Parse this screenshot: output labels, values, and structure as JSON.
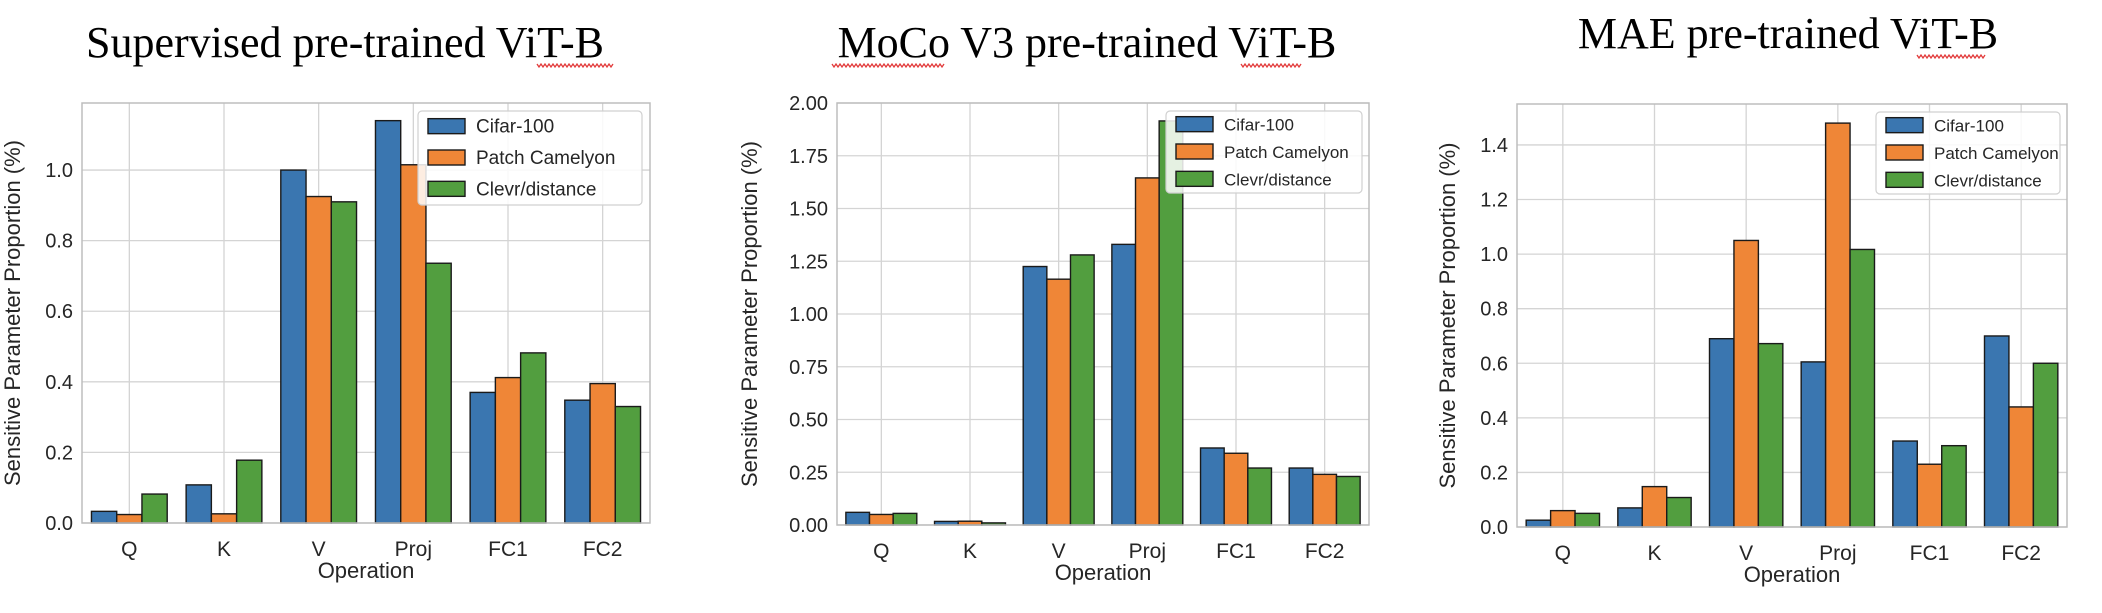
{
  "colors": {
    "Cifar-100": "#3a76b0",
    "Patch Camelyon": "#ef8637",
    "Clevr/distance": "#529e3f"
  },
  "chart_data": [
    {
      "type": "bar",
      "title": "Supervised pre-trained ViT-B",
      "xlabel": "Operation",
      "ylabel": "Sensitive Parameter Proportion (%)",
      "categories": [
        "Q",
        "K",
        "V",
        "Proj",
        "FC1",
        "FC2"
      ],
      "ylim": [
        0,
        1.19
      ],
      "yticks": [
        "0.0",
        "0.2",
        "0.4",
        "0.6",
        "0.8",
        "1.0"
      ],
      "legend_position": "top-right",
      "series": [
        {
          "name": "Cifar-100",
          "values": [
            0.033,
            0.108,
            1.0,
            1.14,
            0.37,
            0.348
          ]
        },
        {
          "name": "Patch Camelyon",
          "values": [
            0.024,
            0.026,
            0.925,
            1.015,
            0.412,
            0.395
          ]
        },
        {
          "name": "Clevr/distance",
          "values": [
            0.082,
            0.178,
            0.91,
            0.736,
            0.482,
            0.33
          ]
        }
      ]
    },
    {
      "type": "bar",
      "title": "MoCo V3 pre-trained ViT-B",
      "xlabel": "Operation",
      "ylabel": "Sensitive Parameter Proportion (%)",
      "categories": [
        "Q",
        "K",
        "V",
        "Proj",
        "FC1",
        "FC2"
      ],
      "ylim": [
        0,
        2.0
      ],
      "yticks": [
        "0.00",
        "0.25",
        "0.50",
        "0.75",
        "1.00",
        "1.25",
        "1.50",
        "1.75",
        "2.00"
      ],
      "legend_position": "top-right",
      "series": [
        {
          "name": "Cifar-100",
          "values": [
            0.06,
            0.017,
            1.225,
            1.33,
            0.365,
            0.27
          ]
        },
        {
          "name": "Patch Camelyon",
          "values": [
            0.05,
            0.018,
            1.165,
            1.645,
            0.34,
            0.24
          ]
        },
        {
          "name": "Clevr/distance",
          "values": [
            0.055,
            0.01,
            1.28,
            1.915,
            0.27,
            0.23
          ]
        }
      ]
    },
    {
      "type": "bar",
      "title": "MAE pre-trained ViT-B",
      "xlabel": "Operation",
      "ylabel": "Sensitive Parameter Proportion (%)",
      "categories": [
        "Q",
        "K",
        "V",
        "Proj",
        "FC1",
        "FC2"
      ],
      "ylim": [
        0,
        1.55
      ],
      "yticks": [
        "0.0",
        "0.2",
        "0.4",
        "0.6",
        "0.8",
        "1.0",
        "1.2",
        "1.4"
      ],
      "legend_position": "top-right",
      "series": [
        {
          "name": "Cifar-100",
          "values": [
            0.025,
            0.07,
            0.69,
            0.605,
            0.315,
            0.7
          ]
        },
        {
          "name": "Patch Camelyon",
          "values": [
            0.06,
            0.148,
            1.05,
            1.48,
            0.23,
            0.44
          ]
        },
        {
          "name": "Clevr/distance",
          "values": [
            0.05,
            0.108,
            0.672,
            1.017,
            0.298,
            0.6
          ]
        }
      ]
    }
  ]
}
